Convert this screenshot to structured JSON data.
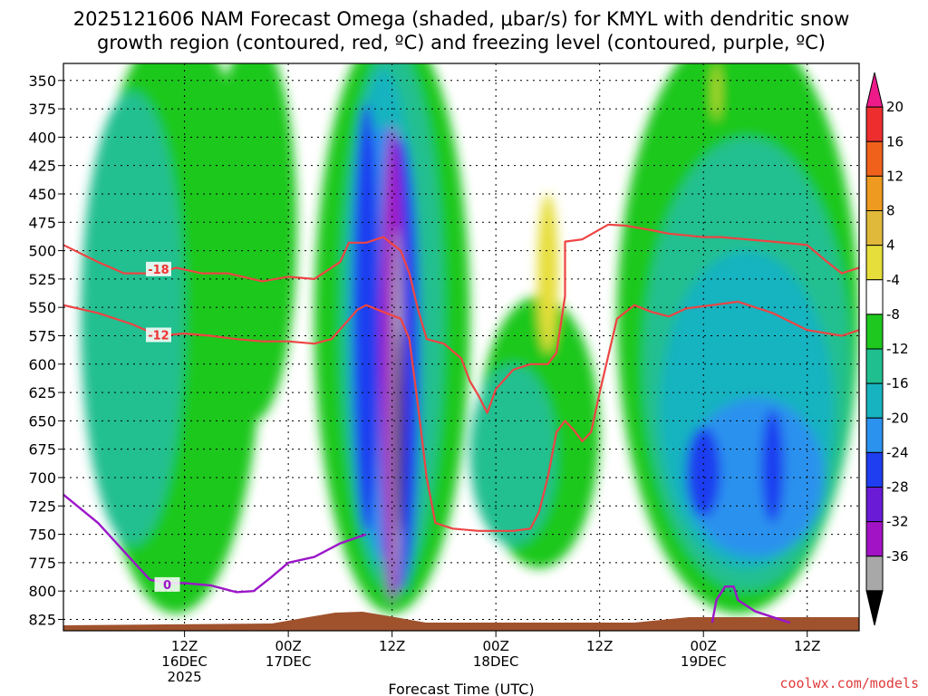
{
  "chart_data": {
    "type": "heatmap",
    "title_line1": "2025121606 NAM Forecast Omega (shaded, μbar/s) for KMYL with dendritic snow",
    "title_line2": "growth region (contoured, red, ºC) and freezing level (contoured, purple, ºC)",
    "xlabel": "Forecast Time (UTC)",
    "ylabel_levels": [
      "350",
      "375",
      "400",
      "425",
      "450",
      "475",
      "500",
      "525",
      "550",
      "575",
      "600",
      "625",
      "650",
      "675",
      "700",
      "725",
      "750",
      "775",
      "800",
      "825"
    ],
    "ylim": [
      335,
      835
    ],
    "xlim": [
      -8,
      84
    ],
    "x_ticks": [
      {
        "hour": 6,
        "lines": [
          "12Z",
          "16DEC",
          "2025"
        ]
      },
      {
        "hour": 18,
        "lines": [
          "00Z",
          "17DEC"
        ]
      },
      {
        "hour": 30,
        "lines": [
          "12Z"
        ]
      },
      {
        "hour": 42,
        "lines": [
          "00Z",
          "18DEC"
        ]
      },
      {
        "hour": 54,
        "lines": [
          "12Z"
        ]
      },
      {
        "hour": 66,
        "lines": [
          "00Z",
          "19DEC"
        ]
      },
      {
        "hour": 78,
        "lines": [
          "12Z"
        ]
      }
    ],
    "colorbar": {
      "labels": [
        "20",
        "16",
        "12",
        "8",
        "4",
        "-4",
        "-8",
        "-12",
        "-16",
        "-20",
        "-24",
        "-28",
        "-32",
        "-36"
      ],
      "colors": [
        "#ee1a8a",
        "#ee2e2e",
        "#f0621c",
        "#ee9a20",
        "#e0b83a",
        "#e6de3a",
        "#ffffff",
        "#1ec81e",
        "#20bf90",
        "#18b3c0",
        "#2b92ee",
        "#1e3ef0",
        "#6a1bd6",
        "#a213c6",
        "#a8a8a8",
        "#000000"
      ]
    },
    "omega_fields": [
      {
        "color": "#1ec81e",
        "cx": 5,
        "cy": 560,
        "rx": 10,
        "ry": 260
      },
      {
        "color": "#1ec81e",
        "cx": 14,
        "cy": 480,
        "rx": 5,
        "ry": 170
      },
      {
        "color": "#1ec81e",
        "cx": 30,
        "cy": 560,
        "rx": 9,
        "ry": 260
      },
      {
        "color": "#1ec81e",
        "cx": 47,
        "cy": 660,
        "rx": 7,
        "ry": 120
      },
      {
        "color": "#1ec81e",
        "cx": 70,
        "cy": 560,
        "rx": 14,
        "ry": 260
      },
      {
        "color": "#20bf90",
        "cx": 0,
        "cy": 560,
        "rx": 6,
        "ry": 200
      },
      {
        "color": "#20bf90",
        "cx": 30,
        "cy": 560,
        "rx": 6,
        "ry": 240
      },
      {
        "color": "#20bf90",
        "cx": 44,
        "cy": 680,
        "rx": 5,
        "ry": 80
      },
      {
        "color": "#20bf90",
        "cx": 71,
        "cy": 600,
        "rx": 12,
        "ry": 200
      },
      {
        "color": "#18b3c0",
        "cx": 29,
        "cy": 560,
        "rx": 4,
        "ry": 220
      },
      {
        "color": "#18b3c0",
        "cx": 71,
        "cy": 640,
        "rx": 10,
        "ry": 140
      },
      {
        "color": "#2b92ee",
        "cx": 29,
        "cy": 580,
        "rx": 3,
        "ry": 190
      },
      {
        "color": "#2b92ee",
        "cx": 72,
        "cy": 700,
        "rx": 8,
        "ry": 70
      },
      {
        "color": "#1e3ef0",
        "cx": 27,
        "cy": 560,
        "rx": 1.6,
        "ry": 190
      },
      {
        "color": "#1e3ef0",
        "cx": 31,
        "cy": 600,
        "rx": 2.2,
        "ry": 200
      },
      {
        "color": "#1e3ef0",
        "cx": 66,
        "cy": 695,
        "rx": 2,
        "ry": 40
      },
      {
        "color": "#1e3ef0",
        "cx": 74,
        "cy": 690,
        "rx": 1.3,
        "ry": 50
      },
      {
        "color": "#a213c6",
        "cx": 30,
        "cy": 600,
        "rx": 1.4,
        "ry": 210
      },
      {
        "color": "#a8a8a8",
        "cx": 30.6,
        "cy": 640,
        "rx": 0.55,
        "ry": 160
      },
      {
        "color": "#000000",
        "cx": 30.8,
        "cy": 660,
        "rx": 0.35,
        "ry": 90
      },
      {
        "color": "#e6de3a",
        "cx": 48,
        "cy": 520,
        "rx": 1.2,
        "ry": 70
      },
      {
        "color": "#e6de3a",
        "cx": 67.5,
        "cy": 360,
        "rx": 0.3,
        "ry": 25
      }
    ],
    "red_contours": [
      {
        "label": "-18",
        "label_at": [
          3,
          517
        ],
        "points": [
          [
            -8,
            495
          ],
          [
            -4,
            510
          ],
          [
            -1,
            520
          ],
          [
            3,
            520
          ],
          [
            5,
            515
          ],
          [
            8,
            520
          ],
          [
            11,
            520
          ],
          [
            15,
            527
          ],
          [
            18,
            523
          ],
          [
            21,
            525
          ],
          [
            24,
            510
          ],
          [
            25,
            493
          ],
          [
            27,
            493
          ],
          [
            29,
            488
          ],
          [
            31,
            500
          ],
          [
            32,
            520
          ],
          [
            33,
            552
          ],
          [
            34,
            578
          ],
          [
            36,
            582
          ],
          [
            38,
            595
          ],
          [
            39,
            615
          ],
          [
            40,
            628
          ],
          [
            41,
            643
          ],
          [
            42,
            622
          ],
          [
            44,
            605
          ],
          [
            46,
            600
          ],
          [
            48,
            600
          ],
          [
            49,
            590
          ],
          [
            50,
            540
          ],
          [
            50,
            492
          ],
          [
            52,
            490
          ],
          [
            55,
            477
          ],
          [
            57,
            478
          ],
          [
            60,
            482
          ],
          [
            62,
            485
          ],
          [
            66,
            488
          ],
          [
            68,
            488
          ],
          [
            71,
            490
          ],
          [
            74,
            492
          ],
          [
            78,
            495
          ],
          [
            80,
            508
          ],
          [
            82,
            520
          ],
          [
            84,
            515
          ]
        ]
      },
      {
        "label": "-12",
        "label_at": [
          3,
          575
        ],
        "points": [
          [
            -8,
            548
          ],
          [
            -4,
            555
          ],
          [
            0,
            565
          ],
          [
            3,
            575
          ],
          [
            6,
            573
          ],
          [
            9,
            575
          ],
          [
            12,
            578
          ],
          [
            15,
            580
          ],
          [
            18,
            580
          ],
          [
            21,
            582
          ],
          [
            23,
            578
          ],
          [
            26,
            552
          ],
          [
            27,
            548
          ],
          [
            29,
            554
          ],
          [
            31,
            560
          ],
          [
            32,
            578
          ],
          [
            33,
            637
          ],
          [
            34,
            700
          ],
          [
            35,
            740
          ],
          [
            37,
            745
          ],
          [
            40,
            747
          ],
          [
            44,
            747
          ],
          [
            46,
            745
          ],
          [
            47,
            730
          ],
          [
            48,
            700
          ],
          [
            49,
            660
          ],
          [
            50,
            650
          ],
          [
            51,
            658
          ],
          [
            52,
            668
          ],
          [
            53,
            660
          ],
          [
            54,
            625
          ],
          [
            56,
            560
          ],
          [
            58,
            548
          ],
          [
            60,
            554
          ],
          [
            62,
            558
          ],
          [
            64,
            551
          ],
          [
            67,
            548
          ],
          [
            70,
            545
          ],
          [
            74,
            555
          ],
          [
            78,
            570
          ],
          [
            82,
            575
          ],
          [
            84,
            570
          ]
        ]
      }
    ],
    "purple_contour": {
      "label": "0",
      "label_at": [
        4,
        795
      ],
      "points": [
        [
          -8,
          715
        ],
        [
          -4,
          740
        ],
        [
          -1,
          765
        ],
        [
          2,
          790
        ],
        [
          4,
          793
        ],
        [
          6,
          793
        ],
        [
          9,
          795
        ],
        [
          12,
          801
        ],
        [
          14,
          800
        ],
        [
          16,
          788
        ],
        [
          18,
          775
        ],
        [
          21,
          770
        ],
        [
          24,
          758
        ],
        [
          27,
          750
        ]
      ]
    },
    "purple_contour2": {
      "points": [
        [
          67,
          828
        ],
        [
          67.5,
          808
        ],
        [
          68.5,
          796
        ],
        [
          69.5,
          796
        ],
        [
          70,
          808
        ],
        [
          72,
          818
        ],
        [
          76,
          828
        ]
      ]
    },
    "credit": "coolwx.com/models"
  }
}
